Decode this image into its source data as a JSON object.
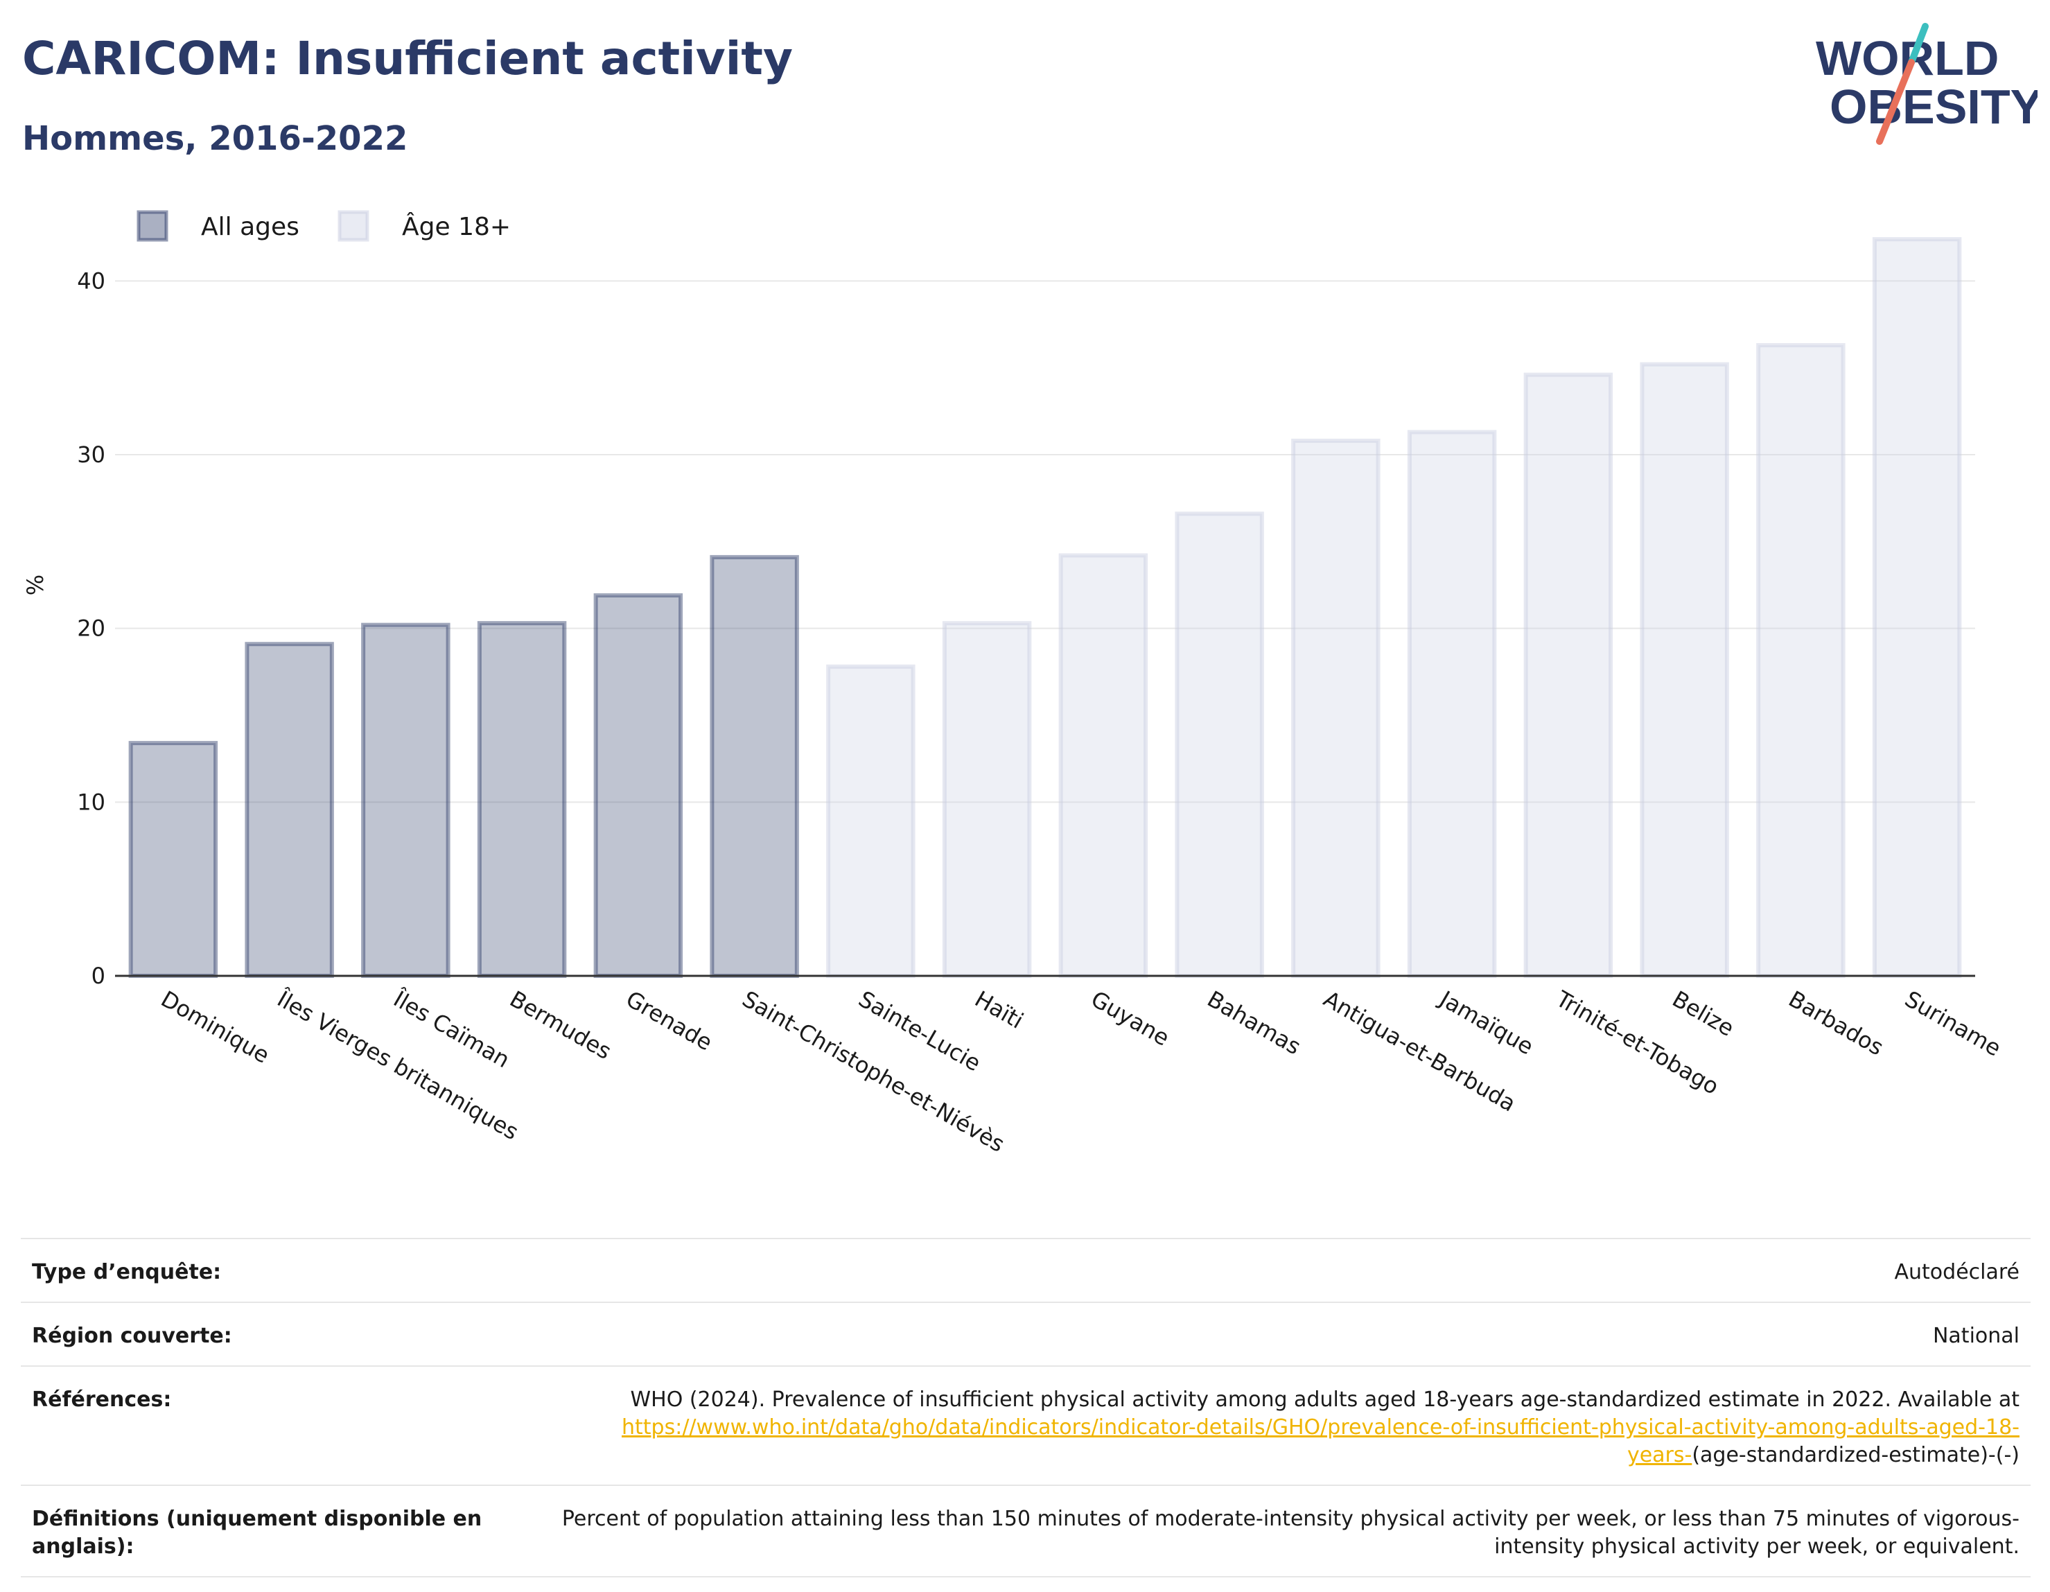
{
  "header": {
    "title": "CARICOM: Insufficient activity",
    "subtitle": "Hommes, 2016-2022"
  },
  "logo": {
    "line1": "WORLD",
    "line2": "OBESITY",
    "colors": {
      "text": "#2b3a67",
      "slash_teal": "#3cbfbf",
      "slash_coral": "#e8705a"
    }
  },
  "chart_data": {
    "type": "bar",
    "ylabel": "%",
    "ylim": [
      0,
      45
    ],
    "yticks": [
      0,
      10,
      20,
      30,
      40
    ],
    "grid": true,
    "legend_position": "top-left",
    "series": [
      {
        "name": "All ages",
        "color": "#2b3a67",
        "fill_opacity": 0.3
      },
      {
        "name": "Âge 18+",
        "color": "#c8cce0",
        "fill_opacity": 0.3
      }
    ],
    "bars": [
      {
        "category": "Dominique",
        "value": 13.4,
        "series": 0
      },
      {
        "category": "Îles Vierges britanniques",
        "value": 19.1,
        "series": 0
      },
      {
        "category": "Îles Caïman",
        "value": 20.2,
        "series": 0
      },
      {
        "category": "Bermudes",
        "value": 20.3,
        "series": 0
      },
      {
        "category": "Grenade",
        "value": 21.9,
        "series": 0
      },
      {
        "category": "Saint-Christophe-et-Niévès",
        "value": 24.1,
        "series": 0
      },
      {
        "category": "Sainte-Lucie",
        "value": 17.8,
        "series": 1
      },
      {
        "category": "Haïti",
        "value": 20.3,
        "series": 1
      },
      {
        "category": "Guyane",
        "value": 24.2,
        "series": 1
      },
      {
        "category": "Bahamas",
        "value": 26.6,
        "series": 1
      },
      {
        "category": "Antigua-et-Barbuda",
        "value": 30.8,
        "series": 1
      },
      {
        "category": "Jamaïque",
        "value": 31.3,
        "series": 1
      },
      {
        "category": "Trinité-et-Tobago",
        "value": 34.6,
        "series": 1
      },
      {
        "category": "Belize",
        "value": 35.2,
        "series": 1
      },
      {
        "category": "Barbados",
        "value": 36.3,
        "series": 1
      },
      {
        "category": "Suriname",
        "value": 42.4,
        "series": 1
      }
    ]
  },
  "info": {
    "survey_type": {
      "label": "Type d’enquête:",
      "value": "Autodéclaré"
    },
    "region": {
      "label": "Région couverte:",
      "value": "National"
    },
    "references": {
      "label": "Références:",
      "text_before": "WHO (2024). Prevalence of insufficient physical activity among adults aged 18-years age-standardized estimate in 2022. Available at ",
      "link": "https://www.who.int/data/gho/data/indicators/indicator-details/GHO/prevalence-of-insufficient-physical-activity-among-adults-aged-18-years-",
      "text_after": "(age-standardized-estimate)-(-)"
    },
    "definitions": {
      "label": "Définitions (uniquement disponible en anglais):",
      "value": "Percent of population attaining less than 150 minutes of moderate-intensity physical activity per week, or less than 75 minutes of vigorous-intensity physical activity per week, or equivalent."
    }
  }
}
